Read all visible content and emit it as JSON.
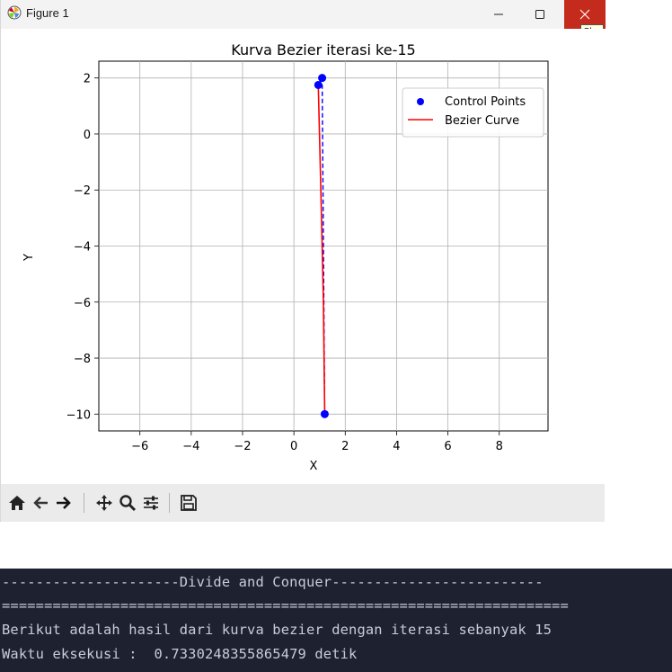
{
  "window": {
    "title": "Figure 1",
    "close_tooltip": "Close"
  },
  "toolbar": {
    "icons": [
      "home-icon",
      "back-icon",
      "forward-icon",
      "pan-icon",
      "zoom-icon",
      "configure-subplots-icon",
      "save-icon"
    ]
  },
  "chart_data": {
    "type": "scatter",
    "title": "Kurva Bezier iterasi ke-15",
    "xlabel": "X",
    "ylabel": "Y",
    "xlim": [
      -7.6,
      9.9
    ],
    "ylim": [
      -10.6,
      2.6
    ],
    "xticks": [
      -6,
      -4,
      -2,
      0,
      2,
      4,
      6,
      8
    ],
    "yticks": [
      2,
      0,
      -2,
      -4,
      -6,
      -8,
      -10
    ],
    "grid": true,
    "legend_position": "upper right",
    "series": [
      {
        "name": "Control Points",
        "kind": "scatter",
        "color": "#0000ff",
        "points": [
          [
            1.1,
            2.0
          ],
          [
            0.95,
            1.75
          ],
          [
            1.2,
            -10.0
          ]
        ]
      },
      {
        "name": "Bezier Curve",
        "kind": "line",
        "color": "#ff0000",
        "points": [
          [
            0.95,
            1.75
          ],
          [
            1.05,
            -2.0
          ],
          [
            1.15,
            -6.0
          ],
          [
            1.2,
            -10.0
          ]
        ]
      }
    ],
    "control_polygon_color": "#0000ff"
  },
  "terminal": {
    "lines": [
      "---------------------Divide and Conquer-------------------------",
      "===================================================================",
      "Berikut adalah hasil dari kurva bezier dengan iterasi sebanyak 15",
      "Waktu eksekusi :  0.7330248355865479 detik"
    ]
  }
}
